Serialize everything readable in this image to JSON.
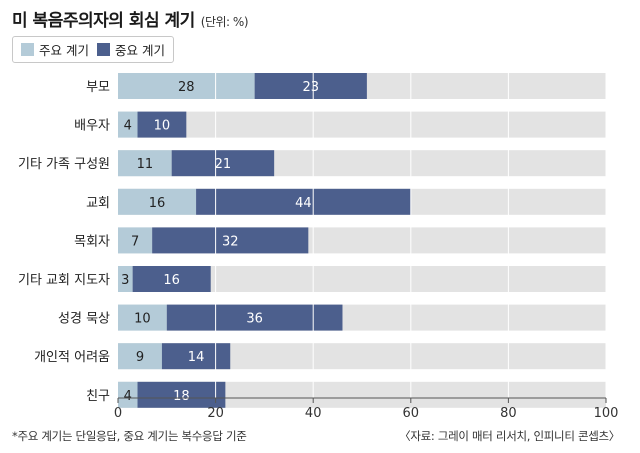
{
  "title": "미 복음주의자의 회심 계기",
  "unit": "(단위: %)",
  "legend": [
    {
      "name": "주요 계기",
      "color": "#b4cbd8"
    },
    {
      "name": "중요 계기",
      "color": "#4c5f8d"
    }
  ],
  "footnote": "*주요 계기는 단일응답, 중요 계기는 복수응답 기준",
  "source": "〈자료: 그레이 매터 리서치, 인피니티 콘셉츠〉",
  "colors": {
    "track": "#e3e3e3",
    "primary": "#b4cbd8",
    "secondary": "#4c5f8d",
    "grid": "#ffffff"
  },
  "chart_data": {
    "type": "bar",
    "orientation": "horizontal",
    "stacked": true,
    "categories": [
      "부모",
      "배우자",
      "기타 가족 구성원",
      "교회",
      "목회자",
      "기타 교회 지도자",
      "성경 묵상",
      "개인적 어려움",
      "친구"
    ],
    "series": [
      {
        "name": "주요 계기",
        "values": [
          28,
          4,
          11,
          16,
          7,
          3,
          10,
          9,
          4
        ]
      },
      {
        "name": "중요 계기",
        "values": [
          23,
          10,
          21,
          44,
          32,
          16,
          36,
          14,
          18
        ]
      }
    ],
    "xlim": [
      0,
      100
    ],
    "xticks": [
      0,
      20,
      40,
      60,
      80,
      100
    ],
    "grid": true,
    "legend_position": "top-left"
  }
}
